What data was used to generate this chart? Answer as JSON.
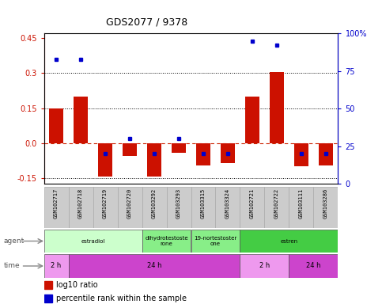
{
  "title": "GDS2077 / 9378",
  "samples": [
    "GSM102717",
    "GSM102718",
    "GSM102719",
    "GSM102720",
    "GSM103292",
    "GSM103293",
    "GSM103315",
    "GSM103324",
    "GSM102721",
    "GSM102722",
    "GSM103111",
    "GSM103286"
  ],
  "log10_ratio": [
    0.15,
    0.2,
    -0.145,
    -0.055,
    -0.145,
    -0.04,
    -0.095,
    -0.085,
    0.2,
    0.305,
    -0.1,
    -0.095
  ],
  "percentile_rank": [
    83,
    83,
    20,
    30,
    20,
    30,
    20,
    20,
    95,
    92,
    20,
    20
  ],
  "ylim_left": [
    -0.175,
    0.47
  ],
  "ylim_right": [
    0,
    100
  ],
  "yticks_left": [
    -0.15,
    0.0,
    0.15,
    0.3,
    0.45
  ],
  "yticks_right": [
    0,
    25,
    50,
    75,
    100
  ],
  "ytick_right_labels": [
    "0",
    "25",
    "50",
    "75",
    "100%"
  ],
  "hline_values": [
    0.15,
    0.3
  ],
  "bar_color": "#cc1100",
  "dot_color": "#0000cc",
  "zero_line_color": "#cc2200",
  "agent_labels": [
    {
      "label": "estradiol",
      "start": 0,
      "end": 3,
      "color": "#ccffcc"
    },
    {
      "label": "dihydrotestoste\nrone",
      "start": 4,
      "end": 5,
      "color": "#88ee88"
    },
    {
      "label": "19-nortestoster\none",
      "start": 6,
      "end": 7,
      "color": "#88ee88"
    },
    {
      "label": "estren",
      "start": 8,
      "end": 11,
      "color": "#44cc44"
    }
  ],
  "time_labels": [
    {
      "label": "2 h",
      "start": 0,
      "end": 0,
      "color": "#ee88ee"
    },
    {
      "label": "24 h",
      "start": 1,
      "end": 7,
      "color": "#cc44cc"
    },
    {
      "label": "2 h",
      "start": 8,
      "end": 9,
      "color": "#ee88ee"
    },
    {
      "label": "24 h",
      "start": 10,
      "end": 11,
      "color": "#cc44cc"
    }
  ],
  "legend_bar_color": "#cc1100",
  "legend_dot_color": "#0000cc",
  "legend_bar_label": "log10 ratio",
  "legend_dot_label": "percentile rank within the sample",
  "background_color": "#ffffff",
  "sample_box_color": "#cccccc",
  "sample_box_edge": "#aaaaaa",
  "agent_arrow_color": "#888888",
  "time_arrow_color": "#888888"
}
